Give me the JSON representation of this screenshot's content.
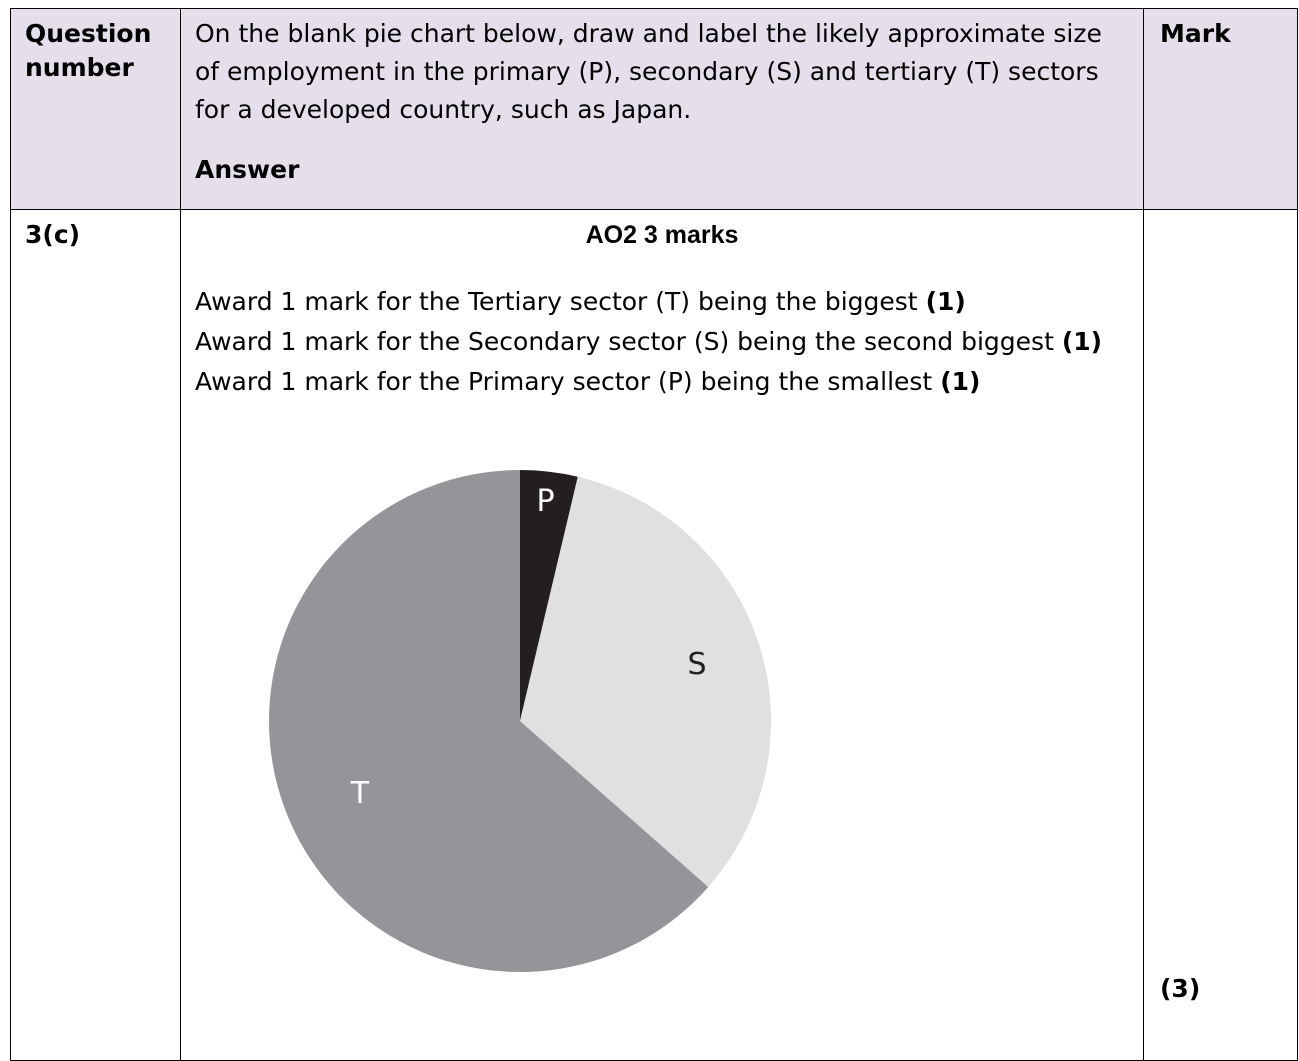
{
  "header": {
    "question_number": [
      "Question",
      "number"
    ],
    "question_text": "On the blank pie chart below, draw and label the likely approximate size of employment in the primary (P), secondary (S) and tertiary (T) sectors for a developed country, such as Japan.",
    "answer_label": "Answer",
    "mark_label": "Mark"
  },
  "row": {
    "code": "3(c)",
    "ao_heading": "AO2 3 marks",
    "criteria": [
      {
        "text": "Award 1 mark for the Tertiary sector (T) being the biggest",
        "mark": "(1)"
      },
      {
        "text": "Award 1 mark for the Secondary sector (S) being the second biggest",
        "mark": "(1)"
      },
      {
        "text": "Award 1 mark for the Primary sector (P) being the smallest",
        "mark": "(1)"
      }
    ],
    "total": "(3)"
  },
  "chart_data": {
    "type": "pie",
    "labels": [
      "P",
      "S",
      "T"
    ],
    "values": [
      3.7,
      32.8,
      63.5
    ],
    "colors": [
      "#231f20",
      "#e0e0e1",
      "#939598"
    ],
    "label_colors": [
      "#ffffff",
      "#231f20",
      "#ffffff"
    ]
  }
}
